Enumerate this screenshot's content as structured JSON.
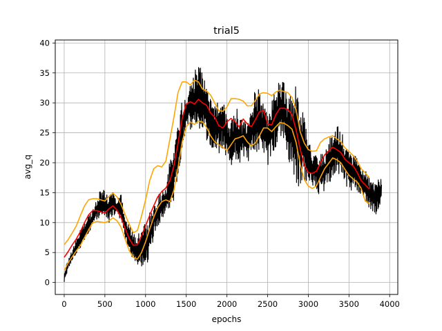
{
  "chart_data": {
    "type": "line",
    "title": "trial5",
    "xlabel": "epochs",
    "ylabel": "avg_q",
    "xlim": [
      -110,
      4100
    ],
    "ylim": [
      -2,
      40.5
    ],
    "xticks": [
      0,
      500,
      1000,
      1500,
      2000,
      2500,
      3000,
      3500,
      4000
    ],
    "yticks": [
      0,
      5,
      10,
      15,
      20,
      25,
      30,
      35,
      40
    ],
    "grid": true,
    "colors": {
      "raw": "#000000",
      "mean": "#ff0000",
      "band": "#ffa500"
    },
    "series": [
      {
        "id": "raw",
        "x": [
          0,
          50,
          100,
          150,
          200,
          250,
          300,
          350,
          400,
          450,
          500,
          550,
          600,
          650,
          700,
          750,
          800,
          850,
          900,
          950,
          1000,
          1050,
          1100,
          1150,
          1200,
          1250,
          1300,
          1350,
          1400,
          1450,
          1500,
          1550,
          1600,
          1650,
          1700,
          1750,
          1800,
          1850,
          1900,
          1950,
          2000,
          2050,
          2100,
          2150,
          2200,
          2250,
          2300,
          2350,
          2400,
          2450,
          2500,
          2550,
          2600,
          2650,
          2700,
          2750,
          2800,
          2850,
          2900,
          2950,
          3000,
          3050,
          3100,
          3150,
          3200,
          3250,
          3300,
          3350,
          3400,
          3450,
          3500,
          3550,
          3600,
          3650,
          3700,
          3750,
          3800,
          3850,
          3900
        ],
        "low": [
          0,
          2,
          3.5,
          4.5,
          5.5,
          6.5,
          7.5,
          9,
          10,
          10.5,
          10.5,
          9.5,
          11,
          11,
          9.5,
          7,
          5,
          3.5,
          2.5,
          2,
          2,
          4,
          7,
          9,
          10,
          11,
          12,
          13,
          17,
          21,
          26,
          25,
          25,
          25,
          25,
          23,
          22,
          21,
          21,
          22,
          20,
          19,
          20,
          19,
          21,
          19,
          22,
          21,
          21,
          21,
          19,
          21,
          22,
          23,
          23,
          20,
          18,
          15,
          15,
          16,
          16,
          16,
          15,
          14,
          15,
          16,
          17,
          17,
          18,
          16,
          15,
          15,
          15,
          14,
          13,
          12,
          11,
          11,
          13
        ],
        "high": [
          2,
          4,
          5.5,
          7.5,
          9,
          10,
          11.5,
          12.5,
          14.5,
          16,
          15.5,
          14.5,
          15.5,
          14,
          15,
          11,
          10,
          8.5,
          8,
          10,
          10.5,
          12,
          14,
          15,
          15.5,
          16,
          21,
          23,
          27,
          31,
          31,
          34,
          36,
          38,
          36,
          33,
          31,
          31,
          31,
          31,
          28,
          27,
          30,
          29,
          27,
          28,
          29,
          34,
          33,
          30,
          29,
          31,
          33,
          35,
          34,
          31,
          33,
          34,
          32,
          29,
          25,
          22,
          22,
          22,
          22,
          24,
          26,
          27,
          26,
          24,
          22,
          22,
          21,
          20,
          19,
          18,
          17,
          17.5,
          17.5
        ]
      },
      {
        "id": "mean",
        "x": [
          0,
          50,
          100,
          150,
          200,
          250,
          300,
          350,
          400,
          450,
          500,
          550,
          600,
          650,
          700,
          750,
          800,
          850,
          900,
          950,
          1000,
          1050,
          1100,
          1150,
          1200,
          1250,
          1300,
          1350,
          1400,
          1450,
          1500,
          1550,
          1600,
          1650,
          1700,
          1750,
          1800,
          1850,
          1900,
          1950,
          2000,
          2050,
          2100,
          2150,
          2200,
          2250,
          2300,
          2350,
          2400,
          2450,
          2500,
          2550,
          2600,
          2650,
          2700,
          2750,
          2800,
          2850,
          2900,
          2950,
          3000,
          3050,
          3100,
          3150,
          3200,
          3250,
          3300,
          3350,
          3400,
          3450,
          3500,
          3550,
          3600,
          3650,
          3700,
          3750
        ],
        "values": [
          4.2,
          5.2,
          6.3,
          7.3,
          8.5,
          10,
          11.3,
          12,
          12,
          11.8,
          11.6,
          12.3,
          12.8,
          12.1,
          10.8,
          9,
          7.3,
          6.2,
          6.3,
          7.8,
          9.5,
          11.2,
          12.8,
          14.3,
          15.2,
          15.8,
          17,
          19.6,
          23.3,
          27.4,
          29.8,
          30.2,
          29.8,
          30.6,
          30,
          29.6,
          28.3,
          27.6,
          26.2,
          25.8,
          26.8,
          27.4,
          26.8,
          26,
          27.3,
          26.5,
          26,
          27.2,
          28.5,
          28.7,
          26.5,
          26.3,
          28,
          29.1,
          29.1,
          28.9,
          28,
          25.5,
          22.3,
          19.6,
          18.4,
          18.2,
          18.6,
          20,
          21.3,
          22,
          22.6,
          22.2,
          21.7,
          20.6,
          20,
          19.5,
          18.4,
          17,
          16.3,
          15.6
        ]
      },
      {
        "id": "upper",
        "x": [
          0,
          50,
          100,
          150,
          200,
          250,
          300,
          350,
          400,
          450,
          500,
          550,
          600,
          650,
          700,
          750,
          800,
          850,
          900,
          950,
          1000,
          1050,
          1100,
          1150,
          1200,
          1250,
          1300,
          1350,
          1400,
          1450,
          1500,
          1550,
          1600,
          1650,
          1700,
          1750,
          1800,
          1850,
          1900,
          1950,
          2000,
          2050,
          2100,
          2150,
          2200,
          2250,
          2300,
          2350,
          2400,
          2450,
          2500,
          2550,
          2600,
          2650,
          2700,
          2750,
          2800,
          2850,
          2900,
          2950,
          3000,
          3050,
          3100,
          3150,
          3200,
          3250,
          3300,
          3350,
          3400,
          3450,
          3500,
          3550,
          3600,
          3650,
          3700,
          3750
        ],
        "values": [
          6.3,
          7.2,
          8.3,
          9.5,
          11.2,
          12.8,
          13.8,
          14,
          14,
          13.8,
          13.6,
          14.4,
          14.9,
          14.3,
          13,
          11.3,
          9.7,
          8.3,
          8.7,
          11.1,
          13.8,
          17,
          19,
          19.5,
          19.3,
          20.3,
          24,
          27.7,
          31.8,
          33.5,
          33.5,
          33,
          33.8,
          33.5,
          32.3,
          32,
          31.3,
          30,
          28.7,
          28.6,
          29.3,
          30.7,
          30.7,
          30.6,
          30.3,
          29.5,
          29.5,
          30.4,
          31.5,
          31.7,
          31.6,
          31.2,
          31.8,
          32.1,
          31.9,
          31.7,
          30.9,
          28.9,
          25.2,
          23.3,
          22.2,
          21.9,
          22,
          23.4,
          24,
          24.3,
          24.5,
          24,
          23.5,
          22.5,
          21.9,
          21.2,
          20.3,
          19,
          18.3,
          17.5
        ]
      },
      {
        "id": "lower",
        "x": [
          0,
          50,
          100,
          150,
          200,
          250,
          300,
          350,
          400,
          450,
          500,
          550,
          600,
          650,
          700,
          750,
          800,
          850,
          900,
          950,
          1000,
          1050,
          1100,
          1150,
          1200,
          1250,
          1300,
          1350,
          1400,
          1450,
          1500,
          1550,
          1600,
          1650,
          1700,
          1750,
          1800,
          1850,
          1900,
          1950,
          2000,
          2050,
          2100,
          2150,
          2200,
          2250,
          2300,
          2350,
          2400,
          2450,
          2500,
          2550,
          2600,
          2650,
          2700,
          2750,
          2800,
          2850,
          2900,
          2950,
          3000,
          3050,
          3100,
          3150,
          3200,
          3250,
          3300,
          3350,
          3400,
          3450,
          3500,
          3550,
          3600,
          3650,
          3700,
          3750
        ],
        "values": [
          2,
          3.3,
          4.3,
          5.3,
          6.2,
          7.5,
          8.8,
          10,
          10.2,
          10.1,
          10,
          10.3,
          10.8,
          10.3,
          9.2,
          7.2,
          5.3,
          4.2,
          3.9,
          5,
          6.8,
          8.9,
          10.9,
          12.5,
          13.5,
          13.8,
          13.5,
          15.5,
          19.3,
          23.5,
          26,
          26.8,
          26.4,
          27,
          26.8,
          25.9,
          24.5,
          23.5,
          23,
          22.6,
          22,
          23,
          24,
          24.2,
          24.5,
          23.5,
          22.8,
          23.3,
          24.5,
          25.8,
          25.8,
          25.2,
          26,
          26.7,
          26.6,
          26.2,
          25.6,
          23.4,
          19.8,
          17.2,
          16.1,
          15.7,
          16.1,
          17.6,
          19,
          19.9,
          20.8,
          20.5,
          20,
          18.9,
          17.9,
          17.3,
          16.8,
          15.7,
          13.6,
          13.2
        ]
      }
    ]
  }
}
